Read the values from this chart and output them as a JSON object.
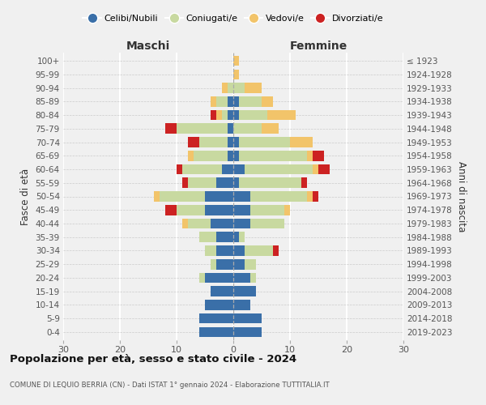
{
  "age_groups": [
    "0-4",
    "5-9",
    "10-14",
    "15-19",
    "20-24",
    "25-29",
    "30-34",
    "35-39",
    "40-44",
    "45-49",
    "50-54",
    "55-59",
    "60-64",
    "65-69",
    "70-74",
    "75-79",
    "80-84",
    "85-89",
    "90-94",
    "95-99",
    "100+"
  ],
  "birth_years": [
    "2019-2023",
    "2014-2018",
    "2009-2013",
    "2004-2008",
    "1999-2003",
    "1994-1998",
    "1989-1993",
    "1984-1988",
    "1979-1983",
    "1974-1978",
    "1969-1973",
    "1964-1968",
    "1959-1963",
    "1954-1958",
    "1949-1953",
    "1944-1948",
    "1939-1943",
    "1934-1938",
    "1929-1933",
    "1924-1928",
    "≤ 1923"
  ],
  "colors": {
    "celibi": "#3a6fa8",
    "coniugati": "#c8d9a0",
    "vedovi": "#f2c46a",
    "divorziati": "#cc2222"
  },
  "maschi": {
    "celibi": [
      6,
      6,
      5,
      4,
      5,
      3,
      3,
      3,
      4,
      5,
      5,
      3,
      2,
      1,
      1,
      1,
      1,
      1,
      0,
      0,
      0
    ],
    "coniugati": [
      0,
      0,
      0,
      0,
      1,
      1,
      2,
      3,
      4,
      5,
      8,
      5,
      7,
      6,
      5,
      9,
      1,
      2,
      1,
      0,
      0
    ],
    "vedovi": [
      0,
      0,
      0,
      0,
      0,
      0,
      0,
      0,
      1,
      0,
      1,
      0,
      0,
      1,
      0,
      0,
      1,
      1,
      1,
      0,
      0
    ],
    "divorziati": [
      0,
      0,
      0,
      0,
      0,
      0,
      0,
      0,
      0,
      2,
      0,
      1,
      1,
      0,
      2,
      2,
      1,
      0,
      0,
      0,
      0
    ]
  },
  "femmine": {
    "celibi": [
      5,
      5,
      3,
      4,
      3,
      2,
      2,
      1,
      3,
      3,
      3,
      1,
      2,
      1,
      1,
      0,
      1,
      1,
      0,
      0,
      0
    ],
    "coniugati": [
      0,
      0,
      0,
      0,
      1,
      2,
      5,
      1,
      6,
      6,
      10,
      11,
      12,
      12,
      9,
      5,
      5,
      4,
      2,
      0,
      0
    ],
    "vedovi": [
      0,
      0,
      0,
      0,
      0,
      0,
      0,
      0,
      0,
      1,
      1,
      0,
      1,
      1,
      4,
      3,
      5,
      2,
      3,
      1,
      1
    ],
    "divorziati": [
      0,
      0,
      0,
      0,
      0,
      0,
      1,
      0,
      0,
      0,
      1,
      1,
      2,
      2,
      0,
      0,
      0,
      0,
      0,
      0,
      0
    ]
  },
  "xlim": 30,
  "title": "Popolazione per età, sesso e stato civile - 2024",
  "subtitle": "COMUNE DI LEQUIO BERRIA (CN) - Dati ISTAT 1° gennaio 2024 - Elaborazione TUTTITALIA.IT",
  "ylabel_left": "Fasce di età",
  "ylabel_right": "Anni di nascita",
  "xlabel_left": "Maschi",
  "xlabel_right": "Femmine",
  "legend_labels": [
    "Celibi/Nubili",
    "Coniugati/e",
    "Vedovi/e",
    "Divorziati/e"
  ],
  "bg_color": "#f0f0f0"
}
